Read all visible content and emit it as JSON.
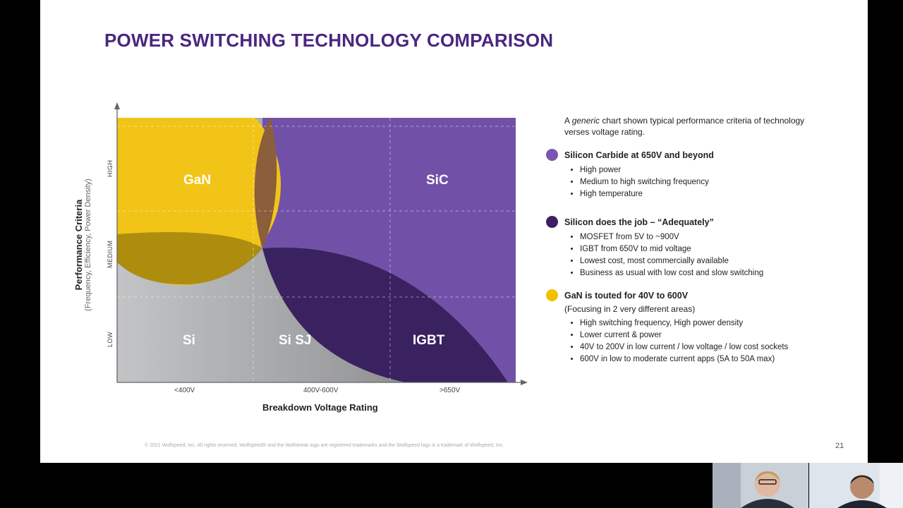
{
  "title": "POWER SWITCHING TECHNOLOGY COMPARISON",
  "chart": {
    "y_axis_title": "Performance Criteria",
    "y_axis_subtitle": "(Frequency, Efficiency, Power Density)",
    "x_axis_title": "Breakdown Voltage Rating",
    "x_ticks": [
      "<400V",
      "400V-600V",
      ">650V"
    ],
    "y_ticks": [
      "LOW",
      "MEDIUM",
      "HIGH"
    ],
    "regions": {
      "gan": "GaN",
      "sic": "SiC",
      "si": "Si",
      "sisj": "Si SJ",
      "igbt": "IGBT"
    }
  },
  "panel": {
    "intro_prefix": "A ",
    "intro_em": "generic",
    "intro_suffix": " chart shown typical performance criteria  of technology verses voltage rating.",
    "sections": [
      {
        "heading": "Silicon Carbide at 650V and beyond",
        "color": "#7b55b0",
        "note": "",
        "bullets": [
          "High power",
          "Medium to high switching frequency",
          "High temperature"
        ]
      },
      {
        "heading": "Silicon does the job – “Adequately”",
        "color": "#3d1f63",
        "note": "",
        "bullets": [
          "MOSFET  from 5V to ~900V",
          "IGBT from 650V to mid voltage",
          "Lowest cost, most commercially available",
          "Business as usual with low cost and slow switching"
        ]
      },
      {
        "heading": "GaN is touted for 40V to 600V",
        "color": "#f2c000",
        "note": "(Focusing in 2 very different areas)",
        "bullets": [
          "High switching frequency, High power density",
          "Lower current & power",
          "40V to 200V in low current / low voltage / low cost sockets",
          "600V in low to moderate current apps (5A to 50A max)"
        ]
      }
    ]
  },
  "footer": "© 2021 Wolfspeed, Inc. All rights reserved.  Wolfspeed® and the Wolfstreak logo are registered  trademarks and the Wolfspeed logo is a trademark of Wolfspeed, Inc.",
  "page_number": "21"
}
